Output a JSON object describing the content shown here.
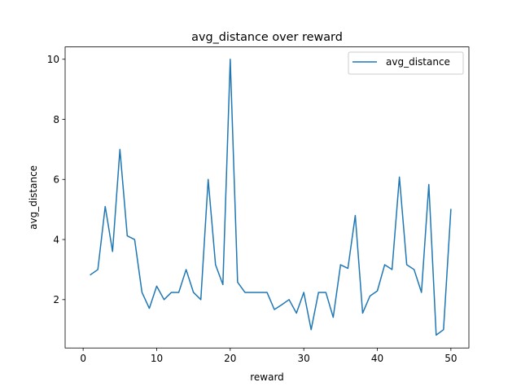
{
  "chart_data": {
    "type": "line",
    "title": "avg_distance over reward",
    "xlabel": "reward",
    "ylabel": "avg_distance",
    "xlim": [
      -2.45,
      52.45
    ],
    "ylim": [
      0.39,
      10.41
    ],
    "xticks": [
      0,
      10,
      20,
      30,
      40,
      50
    ],
    "yticks": [
      2,
      4,
      6,
      8,
      10
    ],
    "grid": false,
    "legend_position": "upper right",
    "series": [
      {
        "name": "avg_distance",
        "color": "#1f77b4",
        "x": [
          1,
          2,
          3,
          4,
          5,
          6,
          7,
          8,
          9,
          10,
          11,
          12,
          13,
          14,
          15,
          16,
          17,
          18,
          19,
          20,
          21,
          22,
          23,
          24,
          25,
          26,
          27,
          28,
          29,
          30,
          31,
          32,
          33,
          34,
          35,
          36,
          37,
          38,
          39,
          40,
          41,
          42,
          43,
          44,
          45,
          46,
          47,
          48,
          49,
          50
        ],
        "y": [
          2.83,
          3.0,
          5.1,
          3.6,
          7.0,
          4.12,
          4.0,
          2.24,
          1.71,
          2.45,
          2.0,
          2.24,
          2.24,
          3.0,
          2.24,
          2.0,
          6.0,
          3.16,
          2.5,
          10.0,
          2.58,
          2.24,
          2.24,
          2.24,
          2.24,
          1.67,
          1.83,
          2.0,
          1.55,
          2.24,
          1.0,
          2.24,
          2.24,
          1.41,
          3.16,
          3.04,
          4.8,
          1.55,
          2.12,
          2.29,
          3.16,
          3.0,
          6.08,
          3.16,
          3.0,
          2.24,
          5.83,
          0.82,
          1.0,
          5.0
        ]
      }
    ]
  }
}
